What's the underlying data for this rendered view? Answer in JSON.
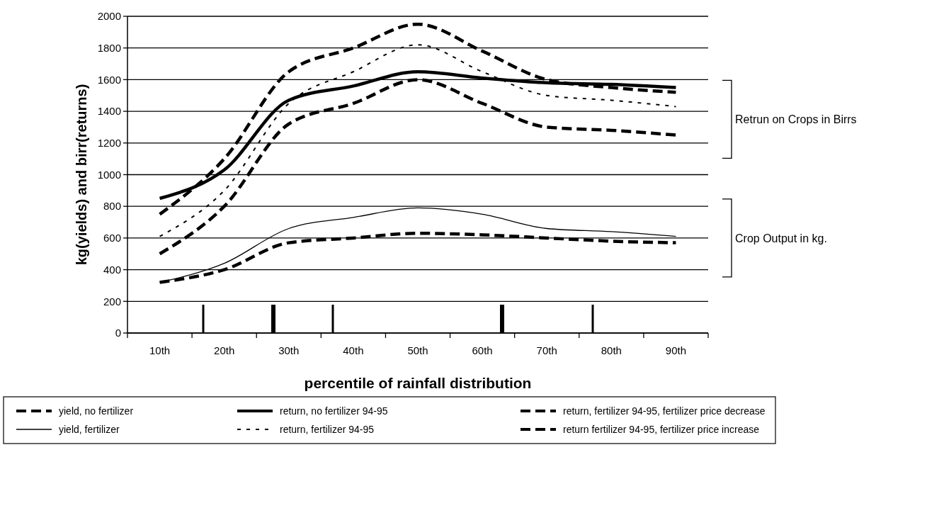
{
  "chart_data": {
    "type": "line",
    "xlabel": "percentile of rainfall distribution",
    "ylabel": "kg(yields) and birr(returns)",
    "categories": [
      "10th",
      "20th",
      "30th",
      "40th",
      "50th",
      "60th",
      "70th",
      "80th",
      "90th"
    ],
    "ylim": [
      0,
      2000
    ],
    "yticks": [
      0,
      200,
      400,
      600,
      800,
      1000,
      1200,
      1400,
      1600,
      1800,
      2000
    ],
    "grid": "y",
    "legend": "bottom",
    "marker": "none",
    "series": [
      {
        "name": "yield, no fertilizer",
        "color": "#000000",
        "line_style": "dashed",
        "values": [
          320,
          400,
          570,
          600,
          630,
          620,
          600,
          580,
          570
        ]
      },
      {
        "name": "yield, fertilizer",
        "color": "#000000",
        "line_style": "solid",
        "values": [
          320,
          440,
          660,
          730,
          790,
          750,
          660,
          640,
          610
        ]
      },
      {
        "name": "return, no fertilizer 94-95",
        "color": "#000000",
        "line_style": "solid",
        "values": [
          850,
          1030,
          1470,
          1560,
          1650,
          1610,
          1580,
          1570,
          1550
        ]
      },
      {
        "name": "return, fertilizer 94-95",
        "color": "#000000",
        "line_style": "dotted",
        "values": [
          610,
          900,
          1450,
          1650,
          1820,
          1650,
          1500,
          1470,
          1430
        ]
      },
      {
        "name": "return, fertilizer 94-95, fertilizer price decrease",
        "color": "#000000",
        "line_style": "dashed",
        "values": [
          750,
          1100,
          1650,
          1800,
          1950,
          1780,
          1600,
          1550,
          1520
        ]
      },
      {
        "name": "return fertilizer 94-95, fertilizer price increase",
        "color": "#000000",
        "line_style": "dashed",
        "values": [
          500,
          800,
          1320,
          1450,
          1600,
          1450,
          1300,
          1280,
          1250
        ]
      }
    ],
    "annotations": [
      "Retrun on Crops in Birrs",
      "Crop Output in kg."
    ]
  }
}
